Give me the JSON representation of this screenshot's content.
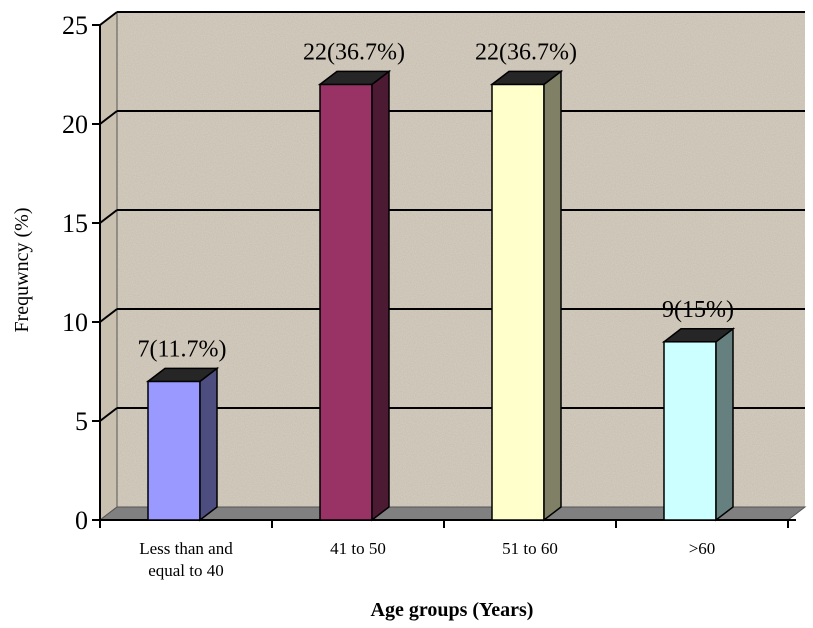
{
  "chart_data": {
    "type": "bar",
    "title": "",
    "xlabel": "Age groups (Years)",
    "ylabel": "Frequwncy (%)",
    "ylim": [
      0,
      25
    ],
    "yticks": [
      "0",
      "5",
      "10",
      "15",
      "20",
      "25"
    ],
    "grid": true,
    "legend": "none",
    "three_d": true,
    "categories": [
      "Less than and\nequal to 40",
      "41 to 50",
      "51 to 60",
      ">60"
    ],
    "values": [
      7,
      22,
      22,
      9
    ],
    "data_labels": [
      "7(11.7%)",
      "22(36.7%)",
      "22(36.7%)",
      "9(15%)"
    ],
    "colors": [
      "#9999ff",
      "#993366",
      "#ffffcc",
      "#ccffff"
    ],
    "background_color": "#d8cfbf",
    "floor_color": "#808080"
  }
}
